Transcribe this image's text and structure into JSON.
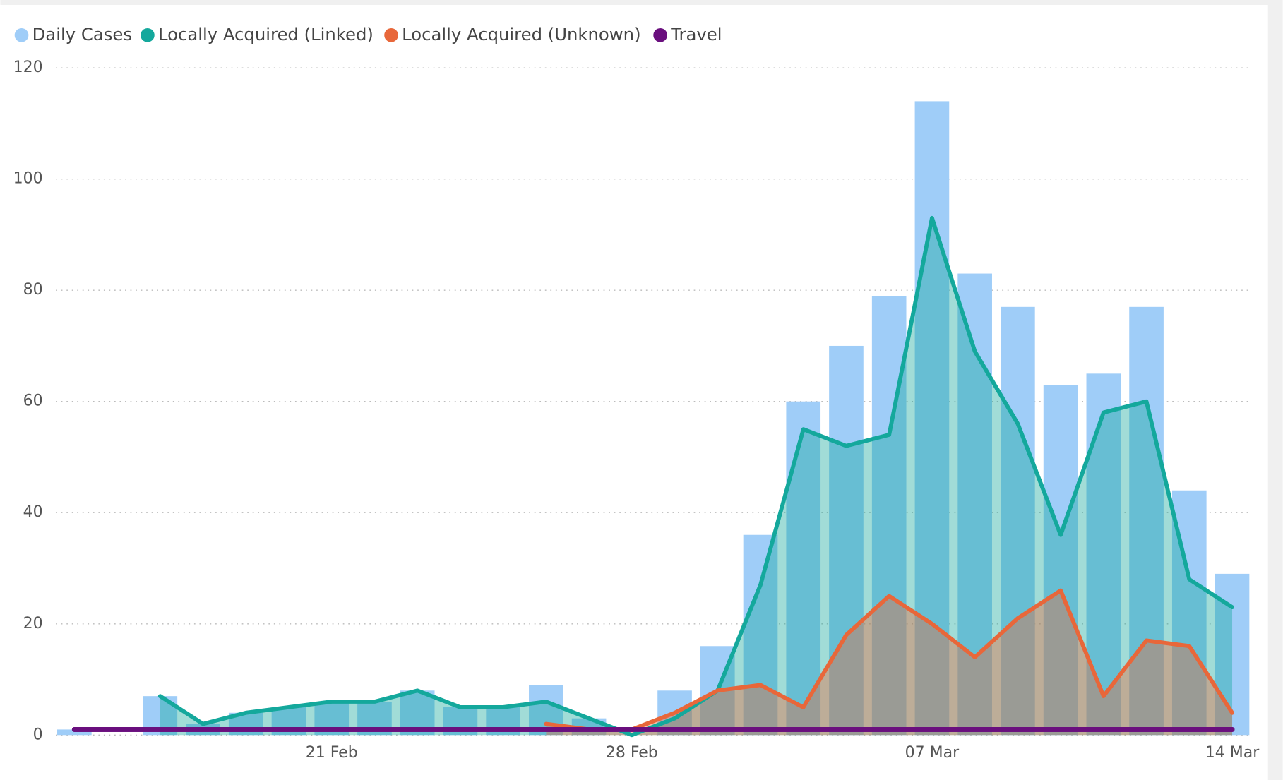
{
  "chart_data": {
    "type": "bar-line",
    "categories": [
      null,
      null,
      null,
      null,
      null,
      null,
      "21 Feb",
      null,
      null,
      null,
      null,
      null,
      null,
      "28 Feb",
      null,
      null,
      null,
      null,
      null,
      null,
      "07 Mar",
      null,
      null,
      null,
      null,
      null,
      null,
      "14 Mar"
    ],
    "series": [
      {
        "name": "Daily Cases",
        "type": "bar",
        "color": "#9fcdf8",
        "values": [
          1,
          0,
          7,
          2,
          4,
          5,
          6,
          6,
          8,
          5,
          5,
          9,
          3,
          0,
          8,
          16,
          36,
          60,
          70,
          79,
          114,
          83,
          77,
          63,
          65,
          77,
          44,
          29
        ]
      },
      {
        "name": "Locally Acquired (Linked)",
        "type": "area",
        "color": "#14a89c",
        "values": [
          null,
          null,
          7,
          2,
          4,
          5,
          6,
          6,
          8,
          5,
          5,
          6,
          3,
          0,
          3,
          8,
          27,
          55,
          52,
          54,
          93,
          69,
          56,
          36,
          58,
          60,
          28,
          23
        ]
      },
      {
        "name": "Locally Acquired (Unknown)",
        "type": "area",
        "color": "#e8673a",
        "values": [
          null,
          null,
          null,
          null,
          null,
          null,
          null,
          null,
          null,
          null,
          null,
          2,
          1,
          1,
          4,
          8,
          9,
          5,
          18,
          25,
          20,
          14,
          21,
          26,
          7,
          17,
          16,
          4
        ]
      },
      {
        "name": "Travel",
        "type": "line",
        "color": "#6a0f7e",
        "values": [
          1,
          1,
          1,
          1,
          1,
          1,
          1,
          1,
          1,
          1,
          1,
          1,
          1,
          1,
          1,
          1,
          1,
          1,
          1,
          1,
          1,
          1,
          1,
          1,
          1,
          1,
          1,
          1
        ]
      }
    ],
    "ylim": [
      0,
      120
    ],
    "yticks": [
      0,
      20,
      40,
      60,
      80,
      100,
      120
    ],
    "grid": true,
    "legend": "top-left"
  }
}
